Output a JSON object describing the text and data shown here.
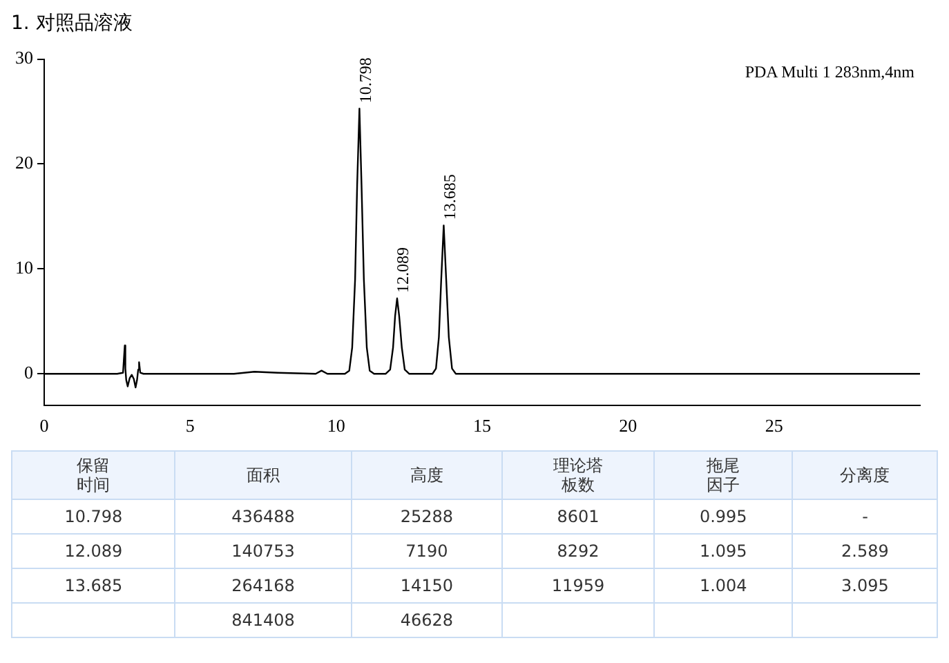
{
  "chart_data": [
    {
      "type": "line",
      "title": "1. 对照品溶液",
      "color": "#000000",
      "marker": "none",
      "line_style": "solid",
      "grid": false,
      "legend": false,
      "x": [
        0,
        1,
        2,
        2.5,
        2.7,
        2.76,
        2.78,
        2.81,
        2.86,
        2.93,
        3.0,
        3.07,
        3.13,
        3.18,
        3.22,
        3.25,
        3.29,
        3.4,
        5,
        6.5,
        7.2,
        8,
        9.3,
        9.5,
        9.7,
        10.3,
        10.45,
        10.55,
        10.65,
        10.72,
        10.798,
        10.87,
        10.95,
        11.05,
        11.15,
        11.3,
        11.7,
        11.85,
        11.95,
        12.02,
        12.089,
        12.16,
        12.25,
        12.35,
        12.5,
        13.3,
        13.42,
        13.52,
        13.6,
        13.685,
        13.77,
        13.86,
        13.97,
        14.1,
        16,
        20,
        25,
        30
      ],
      "values": [
        0,
        0,
        0,
        0,
        0.1,
        2.7,
        0.5,
        -0.6,
        -1.2,
        -0.4,
        -0.1,
        -0.5,
        -1.3,
        -0.6,
        0.4,
        1.1,
        0.1,
        0,
        0,
        0,
        0.2,
        0.1,
        0,
        0.3,
        0,
        0,
        0.3,
        2.5,
        9,
        18,
        25.29,
        18,
        9,
        2.5,
        0.3,
        0,
        0,
        0.4,
        2.5,
        5.5,
        7.19,
        5.5,
        2.5,
        0.4,
        0,
        0,
        0.5,
        3.5,
        9,
        14.15,
        9,
        3.5,
        0.5,
        0,
        0,
        0,
        0,
        0
      ],
      "xlim": [
        0,
        30
      ],
      "xticks": [
        0,
        5,
        10,
        15,
        20,
        25
      ],
      "ylim": [
        -3,
        30
      ],
      "yticks": [
        0,
        10,
        20,
        30
      ],
      "annotations": [
        "PDA Multi 1 283nm,4nm",
        {
          "text": "10.798",
          "x": 10.798,
          "y": 25.29
        },
        {
          "text": "12.089",
          "x": 12.089,
          "y": 7.19
        },
        {
          "text": "13.685",
          "x": 13.685,
          "y": 14.15
        }
      ]
    },
    {
      "type": "other",
      "categories": [
        "保留时间",
        "面积",
        "高度",
        "理论塔板数",
        "拖尾因子",
        "分离度"
      ],
      "cell_labels": [
        [
          "10.798",
          "436488",
          "25288",
          "8601",
          "0.995",
          "-"
        ],
        [
          "12.089",
          "140753",
          "7190",
          "8292",
          "1.095",
          "2.589"
        ],
        [
          "13.685",
          "264168",
          "14150",
          "11959",
          "1.004",
          "3.095"
        ],
        [
          null,
          "841408",
          "46628",
          null,
          null,
          null
        ]
      ]
    }
  ]
}
